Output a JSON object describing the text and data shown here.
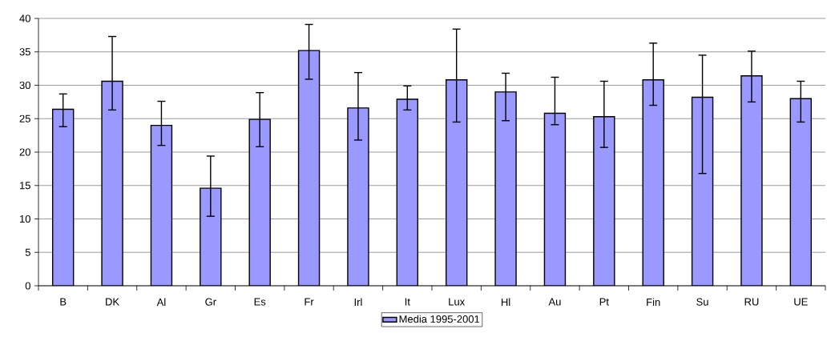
{
  "chart_data": {
    "type": "bar",
    "categories": [
      "B",
      "DK",
      "Al",
      "Gr",
      "Es",
      "Fr",
      "Irl",
      "It",
      "Lux",
      "Hl",
      "Au",
      "Pt",
      "Fin",
      "Su",
      "RU",
      "UE"
    ],
    "series": [
      {
        "name": "Media 1995-2001",
        "color": "#9999ff",
        "values": [
          26.4,
          30.6,
          24.0,
          14.6,
          24.9,
          35.2,
          26.6,
          27.9,
          30.8,
          29.0,
          25.8,
          25.3,
          30.8,
          28.2,
          31.4,
          28.0
        ],
        "errors": [
          [
            23.8,
            28.7
          ],
          [
            26.3,
            37.3
          ],
          [
            21.0,
            27.6
          ],
          [
            10.4,
            19.4
          ],
          [
            20.8,
            28.9
          ],
          [
            30.9,
            39.1
          ],
          [
            21.8,
            31.9
          ],
          [
            26.3,
            29.9
          ],
          [
            24.5,
            38.4
          ],
          [
            24.7,
            31.8
          ],
          [
            24.1,
            31.2
          ],
          [
            20.7,
            30.6
          ],
          [
            27.0,
            36.3
          ],
          [
            16.8,
            34.5
          ],
          [
            27.5,
            35.1
          ],
          [
            24.5,
            30.6
          ]
        ]
      }
    ],
    "ylim": [
      0,
      40
    ],
    "yticks": [
      0,
      5,
      10,
      15,
      20,
      25,
      30,
      35,
      40
    ],
    "grid": "y",
    "legend": "bottom"
  }
}
